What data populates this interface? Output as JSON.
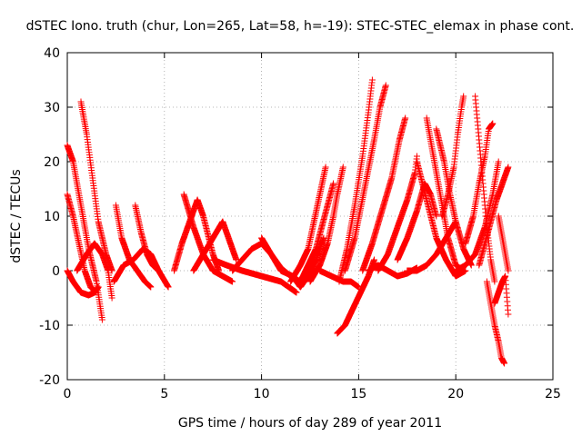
{
  "chart_data": {
    "type": "scatter",
    "title": "dSTEC Iono. truth (chur, Lon=265, Lat=58, h=-19): STEC-STEC_elemax in phase cont.",
    "xlabel": "GPS time / hours of day 289 of year 2011",
    "ylabel": "dSTEC  / TECUs",
    "xlim": [
      0,
      25
    ],
    "ylim": [
      -20,
      40
    ],
    "xticks": [
      0,
      5,
      10,
      15,
      20,
      25
    ],
    "yticks": [
      -20,
      -10,
      0,
      10,
      20,
      30,
      40
    ],
    "xtick_labels": [
      "0",
      "5",
      "10",
      "15",
      "20",
      "25"
    ],
    "ytick_labels": [
      "-20",
      "-10",
      "0",
      "10",
      "20",
      "30",
      "40"
    ],
    "grid": true,
    "marker": "+",
    "color": "#ff0000",
    "arcs": [
      [
        [
          0.0,
          23
        ],
        [
          0.3,
          20
        ],
        [
          0.7,
          12
        ],
        [
          1.1,
          4
        ],
        [
          1.5,
          -2
        ],
        [
          1.8,
          -9
        ]
      ],
      [
        [
          0.0,
          14
        ],
        [
          0.3,
          10
        ],
        [
          0.6,
          5
        ],
        [
          0.9,
          0
        ],
        [
          1.2,
          -3
        ],
        [
          1.5,
          -4
        ]
      ],
      [
        [
          0.0,
          0
        ],
        [
          0.3,
          -2
        ],
        [
          0.7,
          -4
        ],
        [
          1.1,
          -4.5
        ],
        [
          1.4,
          -4
        ],
        [
          1.6,
          -3
        ]
      ],
      [
        [
          0.7,
          31
        ],
        [
          1.0,
          25
        ],
        [
          1.3,
          17
        ],
        [
          1.6,
          9
        ],
        [
          2.0,
          3
        ],
        [
          2.3,
          0
        ]
      ],
      [
        [
          0.5,
          0
        ],
        [
          1.0,
          3
        ],
        [
          1.4,
          5
        ],
        [
          1.8,
          3
        ],
        [
          2.1,
          0
        ],
        [
          2.3,
          -5
        ]
      ],
      [
        [
          2.5,
          12
        ],
        [
          2.8,
          6
        ],
        [
          3.2,
          2
        ],
        [
          3.6,
          0
        ],
        [
          4.0,
          -2
        ],
        [
          4.3,
          -3
        ]
      ],
      [
        [
          3.5,
          12
        ],
        [
          3.8,
          7
        ],
        [
          4.1,
          3
        ],
        [
          4.4,
          1
        ],
        [
          4.7,
          0
        ],
        [
          5.2,
          -3
        ]
      ],
      [
        [
          2.4,
          -2
        ],
        [
          2.9,
          1
        ],
        [
          3.4,
          2
        ],
        [
          3.9,
          4
        ],
        [
          4.3,
          3
        ],
        [
          4.7,
          0
        ]
      ],
      [
        [
          5.5,
          0
        ],
        [
          5.9,
          5
        ],
        [
          6.3,
          9
        ],
        [
          6.7,
          13
        ],
        [
          7.0,
          10
        ],
        [
          7.5,
          3
        ],
        [
          7.8,
          0
        ]
      ],
      [
        [
          6.0,
          14
        ],
        [
          6.5,
          8
        ],
        [
          7.0,
          3
        ],
        [
          7.5,
          0
        ],
        [
          8.0,
          -1
        ],
        [
          8.5,
          -2
        ]
      ],
      [
        [
          6.5,
          0
        ],
        [
          7.0,
          3
        ],
        [
          7.5,
          6
        ],
        [
          8.0,
          9
        ],
        [
          8.3,
          6
        ],
        [
          8.7,
          2
        ]
      ],
      [
        [
          8.5,
          0
        ],
        [
          9.0,
          2
        ],
        [
          9.5,
          4
        ],
        [
          10.0,
          5
        ],
        [
          10.5,
          3
        ],
        [
          11.0,
          0
        ]
      ],
      [
        [
          7.5,
          2
        ],
        [
          8.2,
          1
        ],
        [
          9.0,
          0
        ],
        [
          10.0,
          -1
        ],
        [
          11.0,
          -2
        ],
        [
          11.8,
          -4
        ]
      ],
      [
        [
          10.0,
          6
        ],
        [
          10.5,
          3
        ],
        [
          11.0,
          0.5
        ],
        [
          11.5,
          -1
        ],
        [
          12.0,
          -2
        ],
        [
          12.5,
          0
        ]
      ],
      [
        [
          11.0,
          0
        ],
        [
          11.6,
          -1
        ],
        [
          12.0,
          -3
        ],
        [
          12.4,
          -1
        ],
        [
          12.8,
          2
        ],
        [
          13.2,
          6
        ]
      ],
      [
        [
          11.5,
          -2
        ],
        [
          12.0,
          1
        ],
        [
          12.4,
          4
        ],
        [
          12.7,
          9
        ],
        [
          13.0,
          14
        ],
        [
          13.3,
          19
        ]
      ],
      [
        [
          12.0,
          -2
        ],
        [
          12.4,
          1
        ],
        [
          12.8,
          4
        ],
        [
          13.1,
          8
        ],
        [
          13.4,
          12
        ],
        [
          13.7,
          16
        ]
      ],
      [
        [
          12.5,
          -2
        ],
        [
          13.0,
          1
        ],
        [
          13.4,
          5
        ],
        [
          13.7,
          10
        ],
        [
          13.9,
          14
        ],
        [
          14.2,
          19
        ]
      ],
      [
        [
          13.0,
          0
        ],
        [
          13.6,
          -1
        ],
        [
          14.2,
          -2
        ],
        [
          14.6,
          -2
        ],
        [
          15.0,
          -3
        ]
      ],
      [
        [
          13.9,
          -11.5
        ],
        [
          14.3,
          -10
        ],
        [
          14.7,
          -7
        ],
        [
          15.1,
          -4
        ],
        [
          15.5,
          -1
        ],
        [
          15.8,
          2
        ]
      ],
      [
        [
          14.0,
          -2
        ],
        [
          14.4,
          4
        ],
        [
          14.8,
          12
        ],
        [
          15.2,
          21
        ],
        [
          15.5,
          29
        ],
        [
          15.7,
          35
        ]
      ],
      [
        [
          14.3,
          0
        ],
        [
          14.8,
          6
        ],
        [
          15.3,
          15
        ],
        [
          15.8,
          24
        ],
        [
          16.1,
          30
        ],
        [
          16.4,
          34
        ]
      ],
      [
        [
          15.2,
          0
        ],
        [
          15.7,
          5
        ],
        [
          16.2,
          11
        ],
        [
          16.7,
          17
        ],
        [
          17.1,
          24
        ],
        [
          17.4,
          28
        ]
      ],
      [
        [
          16.0,
          0
        ],
        [
          16.5,
          3
        ],
        [
          17.0,
          8
        ],
        [
          17.5,
          13
        ],
        [
          17.9,
          18
        ],
        [
          18.0,
          21
        ]
      ],
      [
        [
          15.5,
          0
        ],
        [
          16.0,
          1
        ],
        [
          16.5,
          0
        ],
        [
          17.0,
          -1
        ],
        [
          17.5,
          -0.5
        ],
        [
          18.0,
          0.5
        ]
      ],
      [
        [
          17.0,
          2
        ],
        [
          17.5,
          6
        ],
        [
          18.0,
          11
        ],
        [
          18.4,
          16
        ],
        [
          18.7,
          14
        ],
        [
          19.0,
          10
        ]
      ],
      [
        [
          17.5,
          0
        ],
        [
          18.0,
          0
        ],
        [
          18.5,
          1
        ],
        [
          19.0,
          3
        ],
        [
          19.5,
          6
        ],
        [
          20.0,
          9
        ]
      ],
      [
        [
          18.0,
          20
        ],
        [
          18.5,
          13
        ],
        [
          19.0,
          6
        ],
        [
          19.5,
          2
        ],
        [
          20.0,
          -1
        ],
        [
          20.5,
          0
        ]
      ],
      [
        [
          18.5,
          28
        ],
        [
          18.8,
          22
        ],
        [
          19.2,
          14
        ],
        [
          19.6,
          6
        ],
        [
          20.0,
          1
        ],
        [
          20.4,
          0
        ]
      ],
      [
        [
          19.0,
          26
        ],
        [
          19.4,
          20
        ],
        [
          19.7,
          14
        ],
        [
          20.0,
          9
        ],
        [
          20.4,
          4
        ],
        [
          20.8,
          1
        ]
      ],
      [
        [
          19.3,
          10
        ],
        [
          19.6,
          14
        ],
        [
          19.9,
          19
        ],
        [
          20.1,
          25
        ],
        [
          20.3,
          30
        ],
        [
          20.4,
          32
        ]
      ],
      [
        [
          20.0,
          0
        ],
        [
          20.5,
          1
        ],
        [
          21.0,
          3
        ],
        [
          21.5,
          8
        ],
        [
          21.9,
          14
        ],
        [
          22.2,
          20
        ]
      ],
      [
        [
          20.5,
          5
        ],
        [
          20.9,
          10
        ],
        [
          21.2,
          16
        ],
        [
          21.5,
          21
        ],
        [
          21.7,
          26
        ],
        [
          21.9,
          27
        ]
      ],
      [
        [
          21.0,
          32
        ],
        [
          21.2,
          24
        ],
        [
          21.4,
          16
        ],
        [
          21.6,
          8
        ],
        [
          21.8,
          2
        ],
        [
          22.0,
          -2
        ]
      ],
      [
        [
          21.2,
          1
        ],
        [
          21.5,
          5
        ],
        [
          21.8,
          9
        ],
        [
          22.1,
          13
        ],
        [
          22.4,
          16
        ],
        [
          22.7,
          19
        ]
      ],
      [
        [
          21.6,
          -2
        ],
        [
          21.8,
          -6
        ],
        [
          22.0,
          -10
        ],
        [
          22.2,
          -13
        ],
        [
          22.35,
          -16
        ],
        [
          22.5,
          -17
        ]
      ],
      [
        [
          22.0,
          -6
        ],
        [
          22.2,
          -4
        ],
        [
          22.4,
          -2
        ],
        [
          22.55,
          -1
        ],
        [
          22.7,
          -8
        ]
      ],
      [
        [
          22.2,
          10
        ],
        [
          22.4,
          6
        ],
        [
          22.55,
          3
        ],
        [
          22.65,
          1
        ],
        [
          22.7,
          0
        ]
      ]
    ]
  }
}
